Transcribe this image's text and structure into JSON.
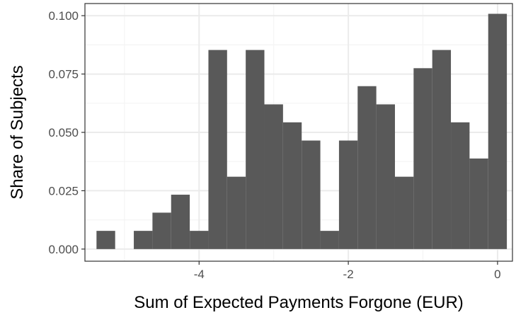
{
  "chart_data": {
    "type": "bar",
    "title": "",
    "xlabel": "Sum of Expected Payments Forgone (EUR)",
    "ylabel": "Share of Subjects",
    "bin_width": 0.25,
    "bins": [
      {
        "x": -5.25,
        "value": 0.0078
      },
      {
        "x": -5.0,
        "value": 0.0
      },
      {
        "x": -4.75,
        "value": 0.0078
      },
      {
        "x": -4.5,
        "value": 0.0156
      },
      {
        "x": -4.25,
        "value": 0.0233
      },
      {
        "x": -4.0,
        "value": 0.0078
      },
      {
        "x": -3.75,
        "value": 0.0853
      },
      {
        "x": -3.5,
        "value": 0.031
      },
      {
        "x": -3.25,
        "value": 0.0853
      },
      {
        "x": -3.0,
        "value": 0.062
      },
      {
        "x": -2.75,
        "value": 0.0543
      },
      {
        "x": -2.5,
        "value": 0.0465
      },
      {
        "x": -2.25,
        "value": 0.0078
      },
      {
        "x": -2.0,
        "value": 0.0465
      },
      {
        "x": -1.75,
        "value": 0.0698
      },
      {
        "x": -1.5,
        "value": 0.062
      },
      {
        "x": -1.25,
        "value": 0.031
      },
      {
        "x": -1.0,
        "value": 0.0775
      },
      {
        "x": -0.75,
        "value": 0.0853
      },
      {
        "x": -0.5,
        "value": 0.0543
      },
      {
        "x": -0.25,
        "value": 0.0388
      },
      {
        "x": 0.0,
        "value": 0.1008
      }
    ],
    "xlim": [
      -5.53,
      0.2
    ],
    "ylim": [
      -0.0052,
      0.1052
    ],
    "x_ticks": [
      -4,
      -2,
      0
    ],
    "x_tick_labels": [
      "-4",
      "-2",
      "0"
    ],
    "y_ticks": [
      0,
      0.025,
      0.05,
      0.075,
      0.1
    ],
    "y_tick_labels": [
      "0.000",
      "0.025",
      "0.050",
      "0.075",
      "0.100"
    ],
    "grid": true,
    "bar_color": "#595959",
    "grid_major_color": "#ebebeb",
    "grid_minor_color": "#f4f4f4",
    "panel_border_color": "#333333"
  }
}
